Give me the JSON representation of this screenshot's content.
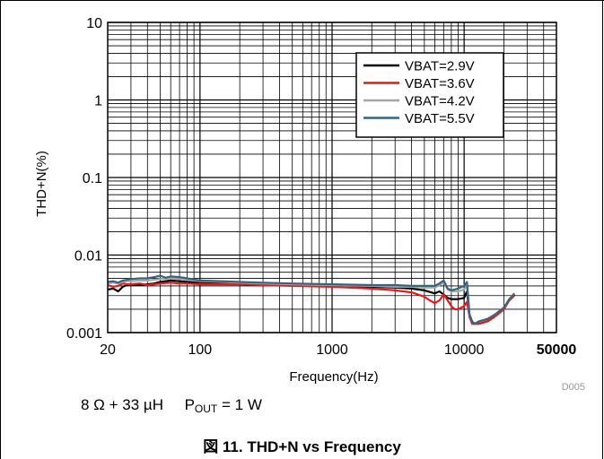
{
  "chart_data": {
    "type": "line",
    "xlabel": "Frequency(Hz)",
    "ylabel": "THD+N(%)",
    "x_scale": "log",
    "y_scale": "log",
    "xlim": [
      20,
      50000
    ],
    "ylim": [
      0.001,
      10
    ],
    "x_ticks": [
      {
        "value": 20,
        "label": "20",
        "bold": false
      },
      {
        "value": 100,
        "label": "100",
        "bold": false
      },
      {
        "value": 1000,
        "label": "1000",
        "bold": false
      },
      {
        "value": 10000,
        "label": "10000",
        "bold": false
      },
      {
        "value": 50000,
        "label": "50000",
        "bold": true
      }
    ],
    "y_ticks": [
      {
        "value": 0.001,
        "label": "0.001"
      },
      {
        "value": 0.01,
        "label": "0.01"
      },
      {
        "value": 0.1,
        "label": "0.1"
      },
      {
        "value": 1,
        "label": "1"
      },
      {
        "value": 10,
        "label": "10"
      }
    ],
    "grid": true,
    "legend_position": "top-right",
    "series": [
      {
        "name": "VBAT=2.9V",
        "color": "#000000",
        "points": [
          [
            20,
            0.0036
          ],
          [
            22,
            0.0037
          ],
          [
            24,
            0.0034
          ],
          [
            26,
            0.0039
          ],
          [
            28,
            0.0041
          ],
          [
            30,
            0.0042
          ],
          [
            35,
            0.0041
          ],
          [
            40,
            0.0042
          ],
          [
            45,
            0.0043
          ],
          [
            50,
            0.0045
          ],
          [
            60,
            0.0047
          ],
          [
            70,
            0.0046
          ],
          [
            80,
            0.0045
          ],
          [
            100,
            0.0044
          ],
          [
            150,
            0.0043
          ],
          [
            200,
            0.0043
          ],
          [
            300,
            0.0042
          ],
          [
            500,
            0.0041
          ],
          [
            1000,
            0.004
          ],
          [
            2000,
            0.0039
          ],
          [
            3000,
            0.0038
          ],
          [
            4000,
            0.0037
          ],
          [
            5000,
            0.0035
          ],
          [
            6000,
            0.0032
          ],
          [
            6500,
            0.0034
          ],
          [
            7000,
            0.0031
          ],
          [
            7500,
            0.0028
          ],
          [
            8000,
            0.0027
          ],
          [
            9000,
            0.0027
          ],
          [
            10000,
            0.0028
          ],
          [
            10500,
            0.0034
          ],
          [
            11000,
            0.0016
          ],
          [
            11500,
            0.0013
          ],
          [
            12000,
            0.0013
          ],
          [
            13000,
            0.0013
          ],
          [
            15000,
            0.0014
          ],
          [
            17000,
            0.0016
          ],
          [
            20000,
            0.002
          ],
          [
            22000,
            0.0027
          ],
          [
            24000,
            0.0031
          ]
        ]
      },
      {
        "name": "VBAT=3.6V",
        "color": "#e41a1c",
        "points": [
          [
            20,
            0.0041
          ],
          [
            22,
            0.0039
          ],
          [
            24,
            0.004
          ],
          [
            26,
            0.0043
          ],
          [
            28,
            0.0042
          ],
          [
            30,
            0.0042
          ],
          [
            35,
            0.0043
          ],
          [
            40,
            0.0041
          ],
          [
            45,
            0.0042
          ],
          [
            50,
            0.0043
          ],
          [
            60,
            0.0044
          ],
          [
            70,
            0.0043
          ],
          [
            80,
            0.0043
          ],
          [
            100,
            0.0042
          ],
          [
            150,
            0.0042
          ],
          [
            200,
            0.0042
          ],
          [
            300,
            0.0041
          ],
          [
            500,
            0.004
          ],
          [
            1000,
            0.0039
          ],
          [
            2000,
            0.0037
          ],
          [
            3000,
            0.0035
          ],
          [
            4000,
            0.0033
          ],
          [
            5000,
            0.0029
          ],
          [
            5500,
            0.0026
          ],
          [
            6000,
            0.0024
          ],
          [
            6500,
            0.0026
          ],
          [
            7000,
            0.0031
          ],
          [
            7500,
            0.0026
          ],
          [
            8000,
            0.0022
          ],
          [
            8500,
            0.002
          ],
          [
            9000,
            0.002
          ],
          [
            9500,
            0.0021
          ],
          [
            10000,
            0.0022
          ],
          [
            10500,
            0.0025
          ],
          [
            11000,
            0.0016
          ],
          [
            11500,
            0.0013
          ],
          [
            12000,
            0.0013
          ],
          [
            13000,
            0.0013
          ],
          [
            15000,
            0.0014
          ],
          [
            17000,
            0.0016
          ],
          [
            20000,
            0.002
          ],
          [
            22000,
            0.0026
          ],
          [
            24000,
            0.003
          ]
        ]
      },
      {
        "name": "VBAT=4.2V",
        "color": "#a6a6a6",
        "points": [
          [
            20,
            0.0043
          ],
          [
            22,
            0.0044
          ],
          [
            24,
            0.0043
          ],
          [
            26,
            0.0045
          ],
          [
            28,
            0.0046
          ],
          [
            30,
            0.0046
          ],
          [
            35,
            0.0047
          ],
          [
            40,
            0.0047
          ],
          [
            45,
            0.0048
          ],
          [
            50,
            0.0049
          ],
          [
            60,
            0.005
          ],
          [
            70,
            0.0049
          ],
          [
            80,
            0.0048
          ],
          [
            100,
            0.0046
          ],
          [
            150,
            0.0045
          ],
          [
            200,
            0.0044
          ],
          [
            300,
            0.0043
          ],
          [
            500,
            0.0042
          ],
          [
            1000,
            0.0041
          ],
          [
            2000,
            0.004
          ],
          [
            3000,
            0.0039
          ],
          [
            4000,
            0.0039
          ],
          [
            5000,
            0.0038
          ],
          [
            6000,
            0.0038
          ],
          [
            6500,
            0.0041
          ],
          [
            7000,
            0.0044
          ],
          [
            7500,
            0.0036
          ],
          [
            8000,
            0.0034
          ],
          [
            9000,
            0.0034
          ],
          [
            10000,
            0.0036
          ],
          [
            10500,
            0.004
          ],
          [
            11000,
            0.0017
          ],
          [
            11500,
            0.0014
          ],
          [
            12000,
            0.0013
          ],
          [
            13000,
            0.0014
          ],
          [
            15000,
            0.0015
          ],
          [
            17000,
            0.0017
          ],
          [
            20000,
            0.0021
          ],
          [
            22000,
            0.0027
          ],
          [
            24000,
            0.0032
          ]
        ]
      },
      {
        "name": "VBAT=5.5V",
        "color": "#36647e",
        "points": [
          [
            20,
            0.0045
          ],
          [
            22,
            0.0046
          ],
          [
            24,
            0.0044
          ],
          [
            26,
            0.0047
          ],
          [
            28,
            0.0048
          ],
          [
            30,
            0.0049
          ],
          [
            35,
            0.005
          ],
          [
            40,
            0.005
          ],
          [
            45,
            0.0052
          ],
          [
            50,
            0.0054
          ],
          [
            55,
            0.0051
          ],
          [
            60,
            0.0053
          ],
          [
            70,
            0.0052
          ],
          [
            80,
            0.005
          ],
          [
            100,
            0.0047
          ],
          [
            150,
            0.0046
          ],
          [
            200,
            0.0045
          ],
          [
            300,
            0.0044
          ],
          [
            500,
            0.0043
          ],
          [
            1000,
            0.0042
          ],
          [
            2000,
            0.0041
          ],
          [
            3000,
            0.0041
          ],
          [
            4000,
            0.004
          ],
          [
            5000,
            0.004
          ],
          [
            6000,
            0.004
          ],
          [
            6500,
            0.0043
          ],
          [
            7000,
            0.0047
          ],
          [
            7500,
            0.0037
          ],
          [
            8000,
            0.0035
          ],
          [
            9000,
            0.0037
          ],
          [
            10000,
            0.004
          ],
          [
            10500,
            0.0045
          ],
          [
            11000,
            0.0017
          ],
          [
            11500,
            0.0014
          ],
          [
            12000,
            0.0013
          ],
          [
            13000,
            0.0014
          ],
          [
            15000,
            0.0015
          ],
          [
            17000,
            0.0017
          ],
          [
            20000,
            0.0021
          ],
          [
            22000,
            0.0027
          ],
          [
            24000,
            0.0032
          ]
        ]
      }
    ],
    "annotation": "D005"
  },
  "caption": {
    "text": "8 Ω + 33 µH     P",
    "subscript": "OUT",
    "suffix": " = 1 W"
  },
  "figure_title": "図 11. THD+N vs Frequency"
}
